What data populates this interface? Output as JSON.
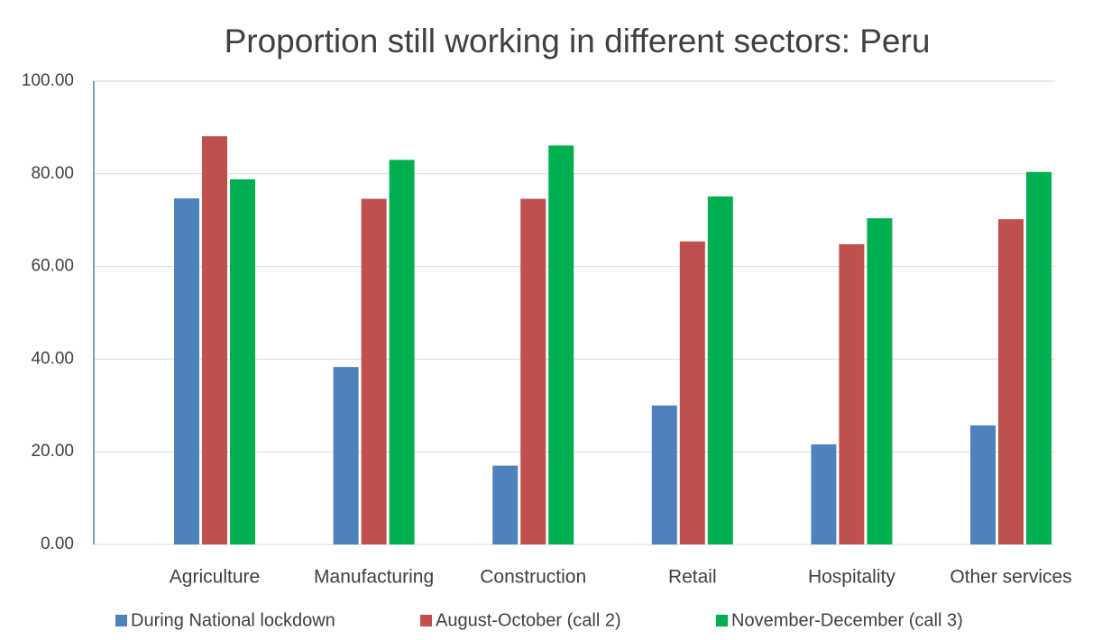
{
  "chart_data": {
    "type": "bar",
    "title": "Proportion still working in different sectors: Peru",
    "categories": [
      "Agriculture",
      "Manufacturing",
      "Construction",
      "Retail",
      "Hospitality",
      "Other services"
    ],
    "series": [
      {
        "name": "During National lockdown",
        "color": "#4f81bd",
        "values": [
          74.7,
          38.3,
          17.0,
          30.0,
          21.6,
          25.7
        ]
      },
      {
        "name": "August-October (call 2)",
        "color": "#c0504d",
        "values": [
          88.1,
          74.6,
          74.6,
          65.4,
          64.8,
          70.2
        ]
      },
      {
        "name": "November-December (call 3)",
        "color": "#00b050",
        "values": [
          78.8,
          83.0,
          86.1,
          75.1,
          70.4,
          80.4
        ]
      }
    ],
    "ylim": [
      0,
      100
    ],
    "yticks": [
      {
        "value": 0,
        "label": "0.00"
      },
      {
        "value": 20,
        "label": "20.00"
      },
      {
        "value": 40,
        "label": "40.00"
      },
      {
        "value": 60,
        "label": "60.00"
      },
      {
        "value": 80,
        "label": "80.00"
      },
      {
        "value": 100,
        "label": "100.00"
      }
    ],
    "grid": true,
    "legend": "bottom"
  }
}
